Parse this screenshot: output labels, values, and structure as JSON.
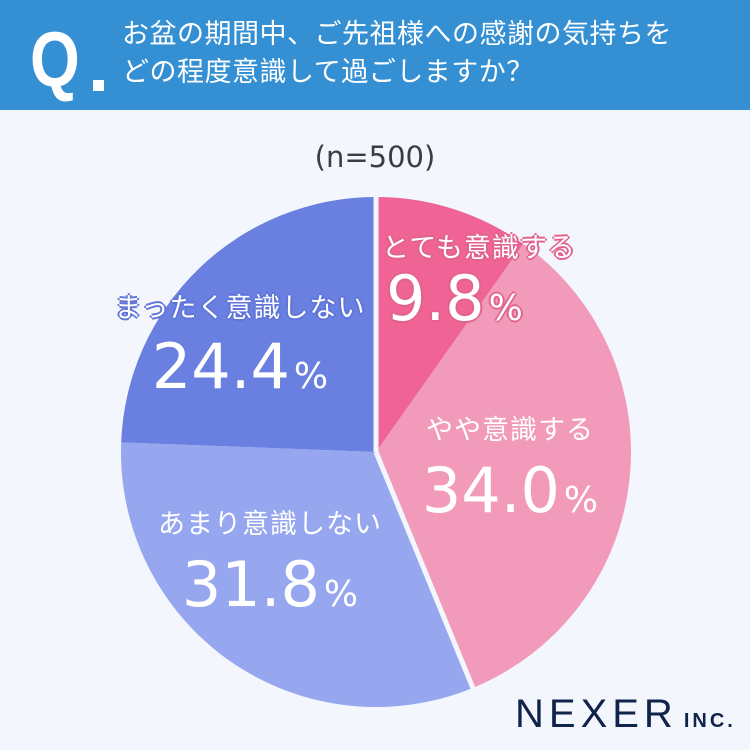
{
  "header": {
    "q_mark": "Q",
    "question_line1": "お盆の期間中、ご先祖様への感謝の気持ちを",
    "question_line2": "どの程度意識して過ごしますか？",
    "bg_color": "#3590d3"
  },
  "sample_size": "(n=500)",
  "logo": {
    "main": "NEXER",
    "suffix": "INC."
  },
  "slices": [
    {
      "label": "とても意識する",
      "value": "9.8",
      "unit": "%",
      "color": "#ef6395"
    },
    {
      "label": "やや意識する",
      "value": "34.0",
      "unit": "%",
      "color": "#f29aba"
    },
    {
      "label": "あまり意識しない",
      "value": "31.8",
      "unit": "%",
      "color": "#97a7ef"
    },
    {
      "label": "まったく意識しない",
      "value": "24.4",
      "unit": "%",
      "color": "#6a80e0"
    }
  ],
  "chart_data": {
    "type": "pie",
    "title": "お盆の期間中、ご先祖様への感謝の気持ちをどの程度意識して過ごしますか？",
    "subtitle": "(n=500)",
    "categories": [
      "とても意識する",
      "やや意識する",
      "あまり意識しない",
      "まったく意識しない"
    ],
    "values": [
      9.8,
      34.0,
      31.8,
      24.4
    ],
    "unit": "%",
    "colors": [
      "#ef6395",
      "#f29aba",
      "#97a7ef",
      "#6a80e0"
    ],
    "start_angle": "12 o'clock, clockwise",
    "legend": "inline labels on slices"
  }
}
